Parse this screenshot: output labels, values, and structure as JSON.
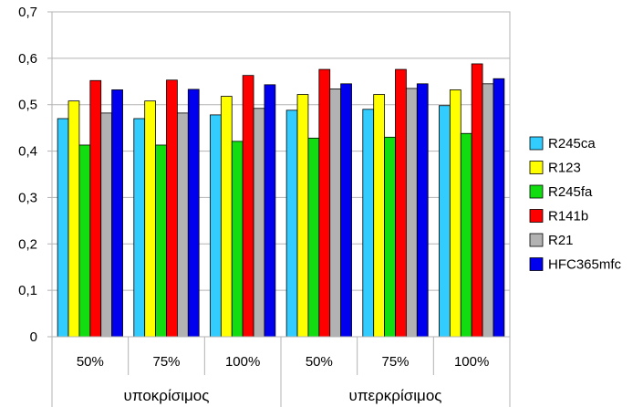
{
  "chart_data": {
    "type": "bar",
    "categories": [
      "50%",
      "75%",
      "100%",
      "50%",
      "75%",
      "100%"
    ],
    "groups": [
      {
        "label": "υποκρίσιμος",
        "categories": [
          0,
          1,
          2
        ]
      },
      {
        "label": "υπερκρίσιμος",
        "categories": [
          3,
          4,
          5
        ]
      }
    ],
    "series": [
      {
        "name": "R245ca",
        "color": "#33ccff",
        "values": [
          0.47,
          0.47,
          0.478,
          0.488,
          0.49,
          0.498
        ]
      },
      {
        "name": "R123",
        "color": "#ffff00",
        "values": [
          0.508,
          0.508,
          0.518,
          0.522,
          0.522,
          0.532
        ]
      },
      {
        "name": "R245fa",
        "color": "#11dd11",
        "values": [
          0.413,
          0.413,
          0.421,
          0.428,
          0.43,
          0.438
        ]
      },
      {
        "name": "R141b",
        "color": "#ff0000",
        "values": [
          0.552,
          0.553,
          0.563,
          0.576,
          0.576,
          0.588
        ]
      },
      {
        "name": "R21",
        "color": "#b2b2b2",
        "values": [
          0.482,
          0.482,
          0.492,
          0.534,
          0.535,
          0.545
        ]
      },
      {
        "name": "HFC365mfc",
        "color": "#0000ee",
        "values": [
          0.532,
          0.533,
          0.543,
          0.545,
          0.545,
          0.556
        ]
      }
    ],
    "yticks": [
      "0",
      "0,1",
      "0,2",
      "0,3",
      "0,4",
      "0,5",
      "0,6",
      "0,7"
    ],
    "ylim": [
      0,
      0.7
    ],
    "grid": true,
    "legend": "right"
  }
}
